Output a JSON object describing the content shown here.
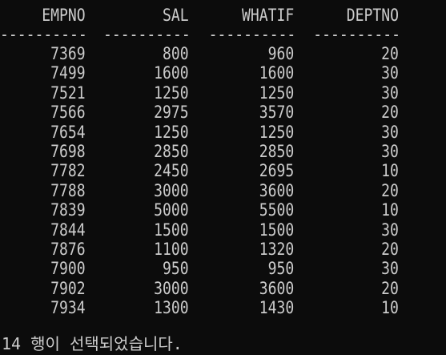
{
  "columns": [
    "EMPNO",
    "SAL",
    "WHATIF",
    "DEPTNO"
  ],
  "separator": "----------",
  "rows": [
    [
      "7369",
      "800",
      "960",
      "20"
    ],
    [
      "7499",
      "1600",
      "1600",
      "30"
    ],
    [
      "7521",
      "1250",
      "1250",
      "30"
    ],
    [
      "7566",
      "2975",
      "3570",
      "20"
    ],
    [
      "7654",
      "1250",
      "1250",
      "30"
    ],
    [
      "7698",
      "2850",
      "2850",
      "30"
    ],
    [
      "7782",
      "2450",
      "2695",
      "10"
    ],
    [
      "7788",
      "3000",
      "3600",
      "20"
    ],
    [
      "7839",
      "5000",
      "5500",
      "10"
    ],
    [
      "7844",
      "1500",
      "1500",
      "30"
    ],
    [
      "7876",
      "1100",
      "1320",
      "20"
    ],
    [
      "7900",
      "950",
      "950",
      "30"
    ],
    [
      "7902",
      "3000",
      "3600",
      "20"
    ],
    [
      "7934",
      "1300",
      "1430",
      "10"
    ]
  ],
  "status_message": "14 행이 선택되었습니다.",
  "colors": {
    "background": "#0c0c0c",
    "text": "#cccccc"
  }
}
